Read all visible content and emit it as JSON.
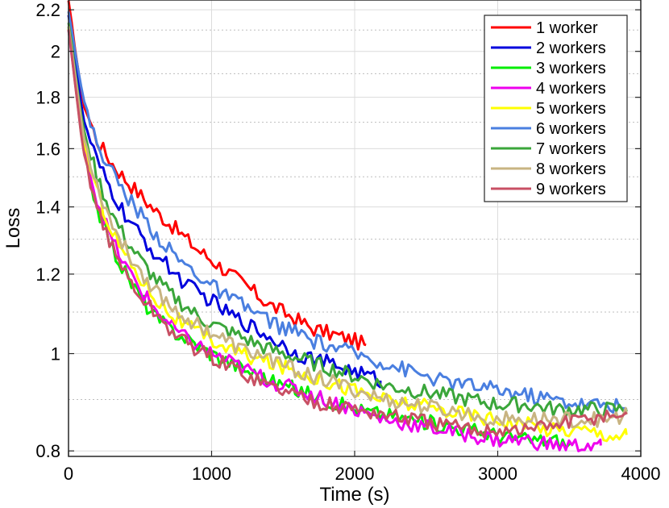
{
  "chart_data": {
    "type": "line",
    "title": "",
    "xlabel": "Time (s)",
    "ylabel": "Loss",
    "xlim": [
      0,
      4000
    ],
    "ylim": [
      0.79,
      2.25
    ],
    "y_scale": "log",
    "x_ticks": [
      0,
      1000,
      2000,
      3000,
      4000
    ],
    "x_tick_labels": [
      "0",
      "1000",
      "2000",
      "3000",
      "4000"
    ],
    "y_ticks": [
      0.8,
      1,
      1.2,
      1.4,
      1.6,
      1.8,
      2,
      2.2
    ],
    "y_tick_labels": [
      "0.8",
      "1",
      "1.2",
      "1.4",
      "1.6",
      "1.8",
      "2",
      "2.2"
    ],
    "y_minor_grid": [
      0.9,
      1.1,
      1.3,
      1.5,
      1.7,
      1.9,
      2.1
    ],
    "grid": true,
    "legend_position": "top-right",
    "series": [
      {
        "name": "1 worker",
        "color": "#ff0000",
        "points": [
          [
            0,
            2.24
          ],
          [
            100,
            1.78
          ],
          [
            200,
            1.63
          ],
          [
            300,
            1.55
          ],
          [
            400,
            1.49
          ],
          [
            500,
            1.44
          ],
          [
            600,
            1.39
          ],
          [
            700,
            1.35
          ],
          [
            800,
            1.31
          ],
          [
            900,
            1.27
          ],
          [
            1000,
            1.24
          ],
          [
            1100,
            1.21
          ],
          [
            1200,
            1.18
          ],
          [
            1300,
            1.15
          ],
          [
            1400,
            1.12
          ],
          [
            1500,
            1.1
          ],
          [
            1600,
            1.08
          ],
          [
            1700,
            1.06
          ],
          [
            1800,
            1.05
          ],
          [
            1900,
            1.04
          ],
          [
            2000,
            1.03
          ],
          [
            2080,
            1.02
          ]
        ]
      },
      {
        "name": "2 workers",
        "color": "#0000dd",
        "points": [
          [
            0,
            2.18
          ],
          [
            100,
            1.72
          ],
          [
            200,
            1.55
          ],
          [
            300,
            1.45
          ],
          [
            400,
            1.37
          ],
          [
            500,
            1.31
          ],
          [
            600,
            1.26
          ],
          [
            700,
            1.22
          ],
          [
            800,
            1.18
          ],
          [
            900,
            1.15
          ],
          [
            1000,
            1.13
          ],
          [
            1100,
            1.1
          ],
          [
            1200,
            1.08
          ],
          [
            1300,
            1.06
          ],
          [
            1400,
            1.04
          ],
          [
            1500,
            1.02
          ],
          [
            1600,
            1.0
          ],
          [
            1700,
            0.99
          ],
          [
            1800,
            0.98
          ],
          [
            1900,
            0.97
          ],
          [
            2000,
            0.96
          ],
          [
            2100,
            0.95
          ],
          [
            2180,
            0.94
          ]
        ]
      },
      {
        "name": "3 workers",
        "color": "#00ee00",
        "points": [
          [
            0,
            2.12
          ],
          [
            100,
            1.6
          ],
          [
            200,
            1.4
          ],
          [
            300,
            1.28
          ],
          [
            400,
            1.2
          ],
          [
            500,
            1.14
          ],
          [
            600,
            1.09
          ],
          [
            700,
            1.06
          ],
          [
            800,
            1.04
          ],
          [
            900,
            1.02
          ],
          [
            1000,
            1.0
          ],
          [
            1200,
            0.97
          ],
          [
            1400,
            0.94
          ],
          [
            1600,
            0.92
          ],
          [
            1800,
            0.9
          ],
          [
            2000,
            0.88
          ],
          [
            2200,
            0.87
          ],
          [
            2400,
            0.86
          ],
          [
            2600,
            0.85
          ],
          [
            2800,
            0.84
          ],
          [
            3000,
            0.83
          ],
          [
            3200,
            0.82
          ],
          [
            3400,
            0.82
          ],
          [
            3500,
            0.81
          ]
        ]
      },
      {
        "name": "4 workers",
        "color": "#ee00ee",
        "points": [
          [
            0,
            2.1
          ],
          [
            100,
            1.62
          ],
          [
            200,
            1.42
          ],
          [
            300,
            1.3
          ],
          [
            400,
            1.22
          ],
          [
            500,
            1.16
          ],
          [
            600,
            1.11
          ],
          [
            700,
            1.07
          ],
          [
            800,
            1.04
          ],
          [
            900,
            1.02
          ],
          [
            1000,
            1.0
          ],
          [
            1200,
            0.97
          ],
          [
            1400,
            0.94
          ],
          [
            1600,
            0.92
          ],
          [
            1800,
            0.9
          ],
          [
            2000,
            0.88
          ],
          [
            2200,
            0.86
          ],
          [
            2400,
            0.85
          ],
          [
            2600,
            0.84
          ],
          [
            2800,
            0.83
          ],
          [
            3000,
            0.82
          ],
          [
            3200,
            0.82
          ],
          [
            3400,
            0.81
          ],
          [
            3600,
            0.81
          ],
          [
            3720,
            0.81
          ]
        ]
      },
      {
        "name": "5 workers",
        "color": "#ffff00",
        "points": [
          [
            0,
            2.1
          ],
          [
            100,
            1.64
          ],
          [
            200,
            1.45
          ],
          [
            300,
            1.33
          ],
          [
            400,
            1.25
          ],
          [
            500,
            1.19
          ],
          [
            600,
            1.14
          ],
          [
            700,
            1.1
          ],
          [
            800,
            1.07
          ],
          [
            900,
            1.05
          ],
          [
            1000,
            1.03
          ],
          [
            1200,
            1.0
          ],
          [
            1400,
            0.98
          ],
          [
            1600,
            0.96
          ],
          [
            1800,
            0.94
          ],
          [
            2000,
            0.92
          ],
          [
            2200,
            0.9
          ],
          [
            2400,
            0.89
          ],
          [
            2600,
            0.88
          ],
          [
            2800,
            0.87
          ],
          [
            3000,
            0.86
          ],
          [
            3200,
            0.85
          ],
          [
            3400,
            0.84
          ],
          [
            3600,
            0.84
          ],
          [
            3800,
            0.83
          ],
          [
            3900,
            0.83
          ]
        ]
      },
      {
        "name": "6 workers",
        "color": "#4a7fe0",
        "points": [
          [
            0,
            2.2
          ],
          [
            100,
            1.8
          ],
          [
            200,
            1.62
          ],
          [
            300,
            1.52
          ],
          [
            400,
            1.44
          ],
          [
            500,
            1.38
          ],
          [
            600,
            1.32
          ],
          [
            700,
            1.27
          ],
          [
            800,
            1.23
          ],
          [
            900,
            1.2
          ],
          [
            1000,
            1.17
          ],
          [
            1100,
            1.14
          ],
          [
            1200,
            1.12
          ],
          [
            1300,
            1.1
          ],
          [
            1400,
            1.08
          ],
          [
            1500,
            1.06
          ],
          [
            1600,
            1.05
          ],
          [
            1700,
            1.03
          ],
          [
            1800,
            1.02
          ],
          [
            1900,
            1.01
          ],
          [
            2000,
            1.0
          ],
          [
            2200,
            0.98
          ],
          [
            2400,
            0.96
          ],
          [
            2600,
            0.94
          ],
          [
            2800,
            0.93
          ],
          [
            3000,
            0.92
          ],
          [
            3200,
            0.91
          ],
          [
            3400,
            0.9
          ],
          [
            3600,
            0.89
          ],
          [
            3800,
            0.89
          ],
          [
            3900,
            0.88
          ]
        ]
      },
      {
        "name": "7 workers",
        "color": "#3aa63a",
        "points": [
          [
            0,
            2.14
          ],
          [
            100,
            1.68
          ],
          [
            200,
            1.5
          ],
          [
            300,
            1.38
          ],
          [
            400,
            1.3
          ],
          [
            500,
            1.24
          ],
          [
            600,
            1.19
          ],
          [
            700,
            1.15
          ],
          [
            800,
            1.12
          ],
          [
            900,
            1.09
          ],
          [
            1000,
            1.07
          ],
          [
            1200,
            1.04
          ],
          [
            1400,
            1.01
          ],
          [
            1600,
            0.99
          ],
          [
            1800,
            0.97
          ],
          [
            2000,
            0.95
          ],
          [
            2200,
            0.93
          ],
          [
            2400,
            0.92
          ],
          [
            2600,
            0.91
          ],
          [
            2800,
            0.9
          ],
          [
            3000,
            0.89
          ],
          [
            3200,
            0.89
          ],
          [
            3400,
            0.88
          ],
          [
            3600,
            0.88
          ],
          [
            3800,
            0.88
          ],
          [
            3900,
            0.88
          ]
        ]
      },
      {
        "name": "8 workers",
        "color": "#c8b482",
        "points": [
          [
            0,
            2.12
          ],
          [
            100,
            1.66
          ],
          [
            200,
            1.47
          ],
          [
            300,
            1.35
          ],
          [
            400,
            1.27
          ],
          [
            500,
            1.21
          ],
          [
            600,
            1.16
          ],
          [
            700,
            1.12
          ],
          [
            800,
            1.09
          ],
          [
            900,
            1.07
          ],
          [
            1000,
            1.05
          ],
          [
            1200,
            1.01
          ],
          [
            1400,
            0.99
          ],
          [
            1600,
            0.96
          ],
          [
            1800,
            0.94
          ],
          [
            2000,
            0.92
          ],
          [
            2200,
            0.9
          ],
          [
            2400,
            0.89
          ],
          [
            2600,
            0.88
          ],
          [
            2800,
            0.87
          ],
          [
            3000,
            0.86
          ],
          [
            3200,
            0.86
          ],
          [
            3400,
            0.86
          ],
          [
            3600,
            0.86
          ],
          [
            3800,
            0.86
          ],
          [
            3900,
            0.87
          ]
        ]
      },
      {
        "name": "9 workers",
        "color": "#c85064",
        "points": [
          [
            0,
            2.1
          ],
          [
            100,
            1.6
          ],
          [
            200,
            1.4
          ],
          [
            300,
            1.28
          ],
          [
            400,
            1.2
          ],
          [
            500,
            1.14
          ],
          [
            600,
            1.1
          ],
          [
            700,
            1.06
          ],
          [
            800,
            1.03
          ],
          [
            900,
            1.01
          ],
          [
            1000,
            0.99
          ],
          [
            1200,
            0.96
          ],
          [
            1400,
            0.93
          ],
          [
            1600,
            0.91
          ],
          [
            1800,
            0.89
          ],
          [
            2000,
            0.88
          ],
          [
            2200,
            0.87
          ],
          [
            2400,
            0.86
          ],
          [
            2600,
            0.85
          ],
          [
            2800,
            0.84
          ],
          [
            3000,
            0.84
          ],
          [
            3200,
            0.84
          ],
          [
            3400,
            0.85
          ],
          [
            3600,
            0.86
          ],
          [
            3800,
            0.87
          ],
          [
            3900,
            0.87
          ]
        ]
      }
    ]
  }
}
